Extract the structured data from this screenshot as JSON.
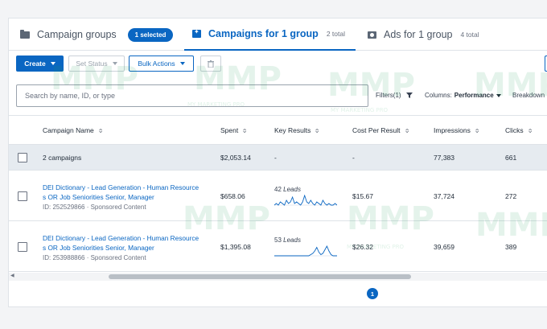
{
  "tabs": [
    {
      "label": "Campaign groups",
      "icon": "folder-icon",
      "badge": "1 selected"
    },
    {
      "label": "Campaigns for 1 group",
      "count": "2 total",
      "icon": "campaign-icon",
      "active": true
    },
    {
      "label": "Ads for 1 group",
      "count": "4 total",
      "icon": "ad-icon"
    }
  ],
  "toolbar": {
    "create": "Create",
    "set_status": "Set Status",
    "bulk_actions": "Bulk Actions"
  },
  "search": {
    "placeholder": "Search by name, ID, or type"
  },
  "filters": {
    "label": "Filters(1)",
    "columns_label": "Columns:",
    "columns_value": "Performance",
    "breakdown": "Breakdown"
  },
  "table": {
    "headers": [
      "Campaign Name",
      "Spent",
      "Key Results",
      "Cost Per Result",
      "Impressions",
      "Clicks"
    ],
    "summary": {
      "name": "2 campaigns",
      "spent": "$2,053.14",
      "key_results": "-",
      "cpr": "-",
      "impressions": "77,383",
      "clicks": "661"
    },
    "rows": [
      {
        "name_line1": "DEI Dictionary - Lead Generation - Human Resource",
        "name_line2": "s OR Job Seniorities Senior, Manager",
        "id": "ID: 252529866 · Sponsored Content",
        "spent": "$658.06",
        "kr_value": "42",
        "kr_unit": "Leads",
        "spark": [
          0,
          1,
          0,
          2,
          1,
          0,
          3,
          1,
          2,
          5,
          1,
          2,
          1,
          0,
          2,
          6,
          2,
          1,
          3,
          1,
          0,
          2,
          1,
          0,
          3,
          1,
          0,
          1,
          0,
          0,
          1,
          0
        ],
        "cpr": "$15.67",
        "impressions": "37,724",
        "clicks": "272"
      },
      {
        "name_line1": "DEI Dictionary - Lead Generation - Human Resource",
        "name_line2": "s OR Job Seniorities Senior, Manager",
        "id": "ID: 253988866 · Sponsored Content",
        "spent": "$1,395.08",
        "kr_value": "53",
        "kr_unit": "Leads",
        "spark": [
          0,
          0,
          0,
          0,
          0,
          0,
          0,
          0,
          0,
          0,
          0,
          0,
          0,
          0,
          0,
          0,
          0,
          0,
          1,
          2,
          4,
          7,
          3,
          1,
          2,
          5,
          8,
          4,
          1,
          0,
          0,
          0
        ],
        "cpr": "$26.32",
        "impressions": "39,659",
        "clicks": "389"
      }
    ]
  },
  "pagination": {
    "current": "1"
  },
  "watermark": {
    "text": "MMP",
    "sub": "MY MARKETING PRO"
  },
  "colors": {
    "accent": "#0a66c2",
    "sparkline": "#0a66c2"
  }
}
